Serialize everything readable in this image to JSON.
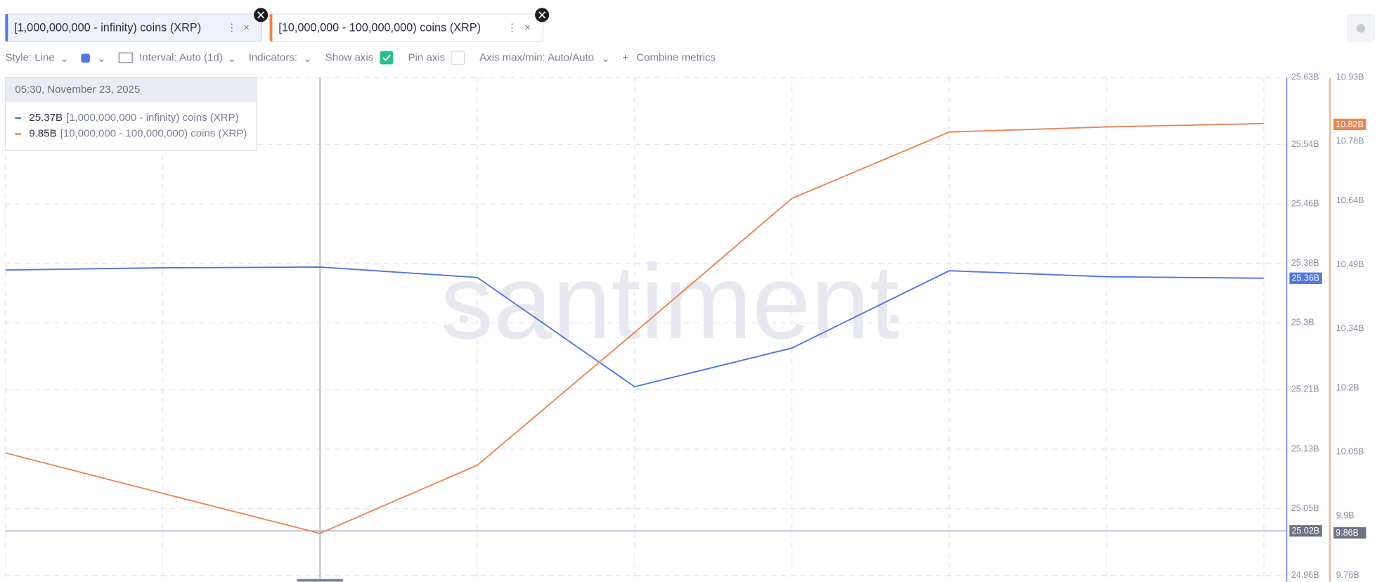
{
  "chart_data": {
    "type": "line",
    "categories": [
      null,
      null,
      null,
      null,
      null,
      null,
      null,
      null,
      null
    ],
    "series": [
      {
        "name": "[1,000,000,000 - infinity) coins (XRP)",
        "color": "#5275e0",
        "axis": "y",
        "values": [
          25.371,
          25.374,
          25.375,
          25.361,
          25.214,
          25.266,
          25.37,
          25.362,
          25.36
        ],
        "last_value": {
          "value": 25.36,
          "label": "25.36B"
        }
      },
      {
        "name": "[10,000,000 - 100,000,000) coins (XRP)",
        "color": "#ea8552",
        "axis": "y2",
        "values": [
          10.048,
          9.953,
          9.859,
          10.019,
          10.331,
          10.646,
          10.802,
          10.814,
          10.822
        ],
        "last_value": {
          "value": 10.82,
          "label": "10.82B"
        }
      }
    ],
    "ylim": [
      24.96,
      25.63
    ],
    "yticks": [
      {
        "value": 24.96,
        "label": "24.96B"
      },
      {
        "value": 25.05,
        "label": "25.05B"
      },
      {
        "value": 25.13,
        "label": "25.13B"
      },
      {
        "value": 25.21,
        "label": "25.21B"
      },
      {
        "value": 25.3,
        "label": "25.3B"
      },
      {
        "value": 25.38,
        "label": "25.38B"
      },
      {
        "value": 25.46,
        "label": "25.46B"
      },
      {
        "value": 25.54,
        "label": "25.54B"
      },
      {
        "value": 25.63,
        "label": "25.63B"
      }
    ],
    "y2lim": [
      9.76,
      10.93
    ],
    "y2ticks": [
      {
        "value": 9.76,
        "label": "9.76B"
      },
      {
        "value": 9.9,
        "label": "9.9B"
      },
      {
        "value": 10.05,
        "label": "10.05B"
      },
      {
        "value": 10.2,
        "label": "10.2B"
      },
      {
        "value": 10.34,
        "label": "10.34B"
      },
      {
        "value": 10.49,
        "label": "10.49B"
      },
      {
        "value": 10.64,
        "label": "10.64B"
      },
      {
        "value": 10.78,
        "label": "10.78B"
      },
      {
        "value": 10.93,
        "label": "10.93B"
      }
    ],
    "grid": true,
    "crosshair": {
      "y": {
        "value": 25.02,
        "label": "25.02B"
      },
      "y2": {
        "value": 9.86,
        "label": "9.86B"
      }
    },
    "tooltip": {
      "time": "05:30, November 23, 2025",
      "values": [
        {
          "value": 25.37,
          "label": "25.37B"
        },
        {
          "value": 9.85,
          "label": "9.85B"
        }
      ]
    },
    "watermark": "santiment"
  },
  "toolbar": {
    "style": "Style: Line",
    "interval": "Interval: Auto (1d)",
    "indicators": "Indicators:",
    "show_axis": "Show axis",
    "pin_axis": "Pin axis",
    "axis_range": "Axis max/min: Auto/Auto",
    "combine": "Combine metrics"
  }
}
